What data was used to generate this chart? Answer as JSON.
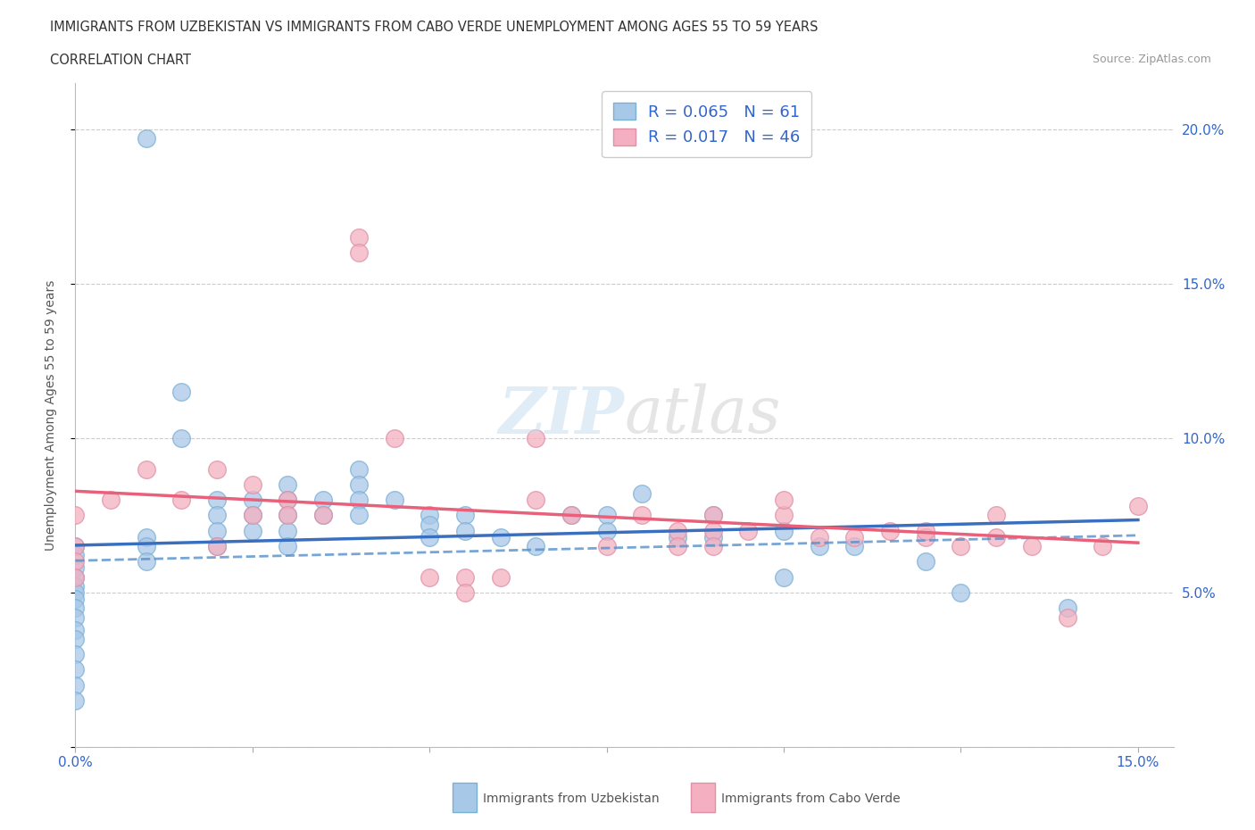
{
  "title_line1": "IMMIGRANTS FROM UZBEKISTAN VS IMMIGRANTS FROM CABO VERDE UNEMPLOYMENT AMONG AGES 55 TO 59 YEARS",
  "title_line2": "CORRELATION CHART",
  "source_text": "Source: ZipAtlas.com",
  "ylabel": "Unemployment Among Ages 55 to 59 years",
  "xlim": [
    0.0,
    0.155
  ],
  "ylim": [
    0.0,
    0.215
  ],
  "color_uzbekistan": "#a8c8e8",
  "color_cabo_verde": "#f4b0c0",
  "color_line_uzbekistan": "#3a6fbf",
  "color_line_cabo_verde": "#e8607a",
  "R_uzbekistan": 0.065,
  "N_uzbekistan": 61,
  "R_cabo_verde": 0.017,
  "N_cabo_verde": 46,
  "uzbekistan_x": [
    0.01,
    0.0,
    0.0,
    0.0,
    0.0,
    0.0,
    0.0,
    0.0,
    0.0,
    0.0,
    0.0,
    0.0,
    0.0,
    0.0,
    0.0,
    0.0,
    0.01,
    0.01,
    0.01,
    0.015,
    0.015,
    0.02,
    0.02,
    0.02,
    0.02,
    0.025,
    0.025,
    0.025,
    0.03,
    0.03,
    0.03,
    0.03,
    0.03,
    0.035,
    0.035,
    0.04,
    0.04,
    0.04,
    0.04,
    0.045,
    0.05,
    0.05,
    0.05,
    0.055,
    0.055,
    0.06,
    0.065,
    0.07,
    0.075,
    0.075,
    0.08,
    0.085,
    0.09,
    0.09,
    0.1,
    0.1,
    0.105,
    0.11,
    0.12,
    0.125,
    0.14
  ],
  "uzbekistan_y": [
    0.197,
    0.065,
    0.062,
    0.058,
    0.055,
    0.052,
    0.05,
    0.048,
    0.045,
    0.042,
    0.038,
    0.035,
    0.03,
    0.025,
    0.02,
    0.015,
    0.068,
    0.065,
    0.06,
    0.115,
    0.1,
    0.08,
    0.075,
    0.07,
    0.065,
    0.08,
    0.075,
    0.07,
    0.085,
    0.08,
    0.075,
    0.07,
    0.065,
    0.08,
    0.075,
    0.09,
    0.085,
    0.08,
    0.075,
    0.08,
    0.075,
    0.072,
    0.068,
    0.075,
    0.07,
    0.068,
    0.065,
    0.075,
    0.075,
    0.07,
    0.082,
    0.068,
    0.075,
    0.068,
    0.055,
    0.07,
    0.065,
    0.065,
    0.06,
    0.05,
    0.045
  ],
  "cabo_verde_x": [
    0.0,
    0.0,
    0.0,
    0.0,
    0.005,
    0.01,
    0.015,
    0.02,
    0.02,
    0.025,
    0.025,
    0.03,
    0.03,
    0.035,
    0.04,
    0.04,
    0.045,
    0.05,
    0.055,
    0.055,
    0.06,
    0.065,
    0.07,
    0.075,
    0.08,
    0.085,
    0.085,
    0.09,
    0.09,
    0.09,
    0.095,
    0.1,
    0.105,
    0.11,
    0.115,
    0.12,
    0.125,
    0.13,
    0.13,
    0.135,
    0.14,
    0.145,
    0.15,
    0.12,
    0.065,
    0.1
  ],
  "cabo_verde_y": [
    0.075,
    0.065,
    0.06,
    0.055,
    0.08,
    0.09,
    0.08,
    0.09,
    0.065,
    0.075,
    0.085,
    0.08,
    0.075,
    0.075,
    0.165,
    0.16,
    0.1,
    0.055,
    0.055,
    0.05,
    0.055,
    0.08,
    0.075,
    0.065,
    0.075,
    0.07,
    0.065,
    0.075,
    0.07,
    0.065,
    0.07,
    0.075,
    0.068,
    0.068,
    0.07,
    0.068,
    0.065,
    0.075,
    0.068,
    0.065,
    0.042,
    0.065,
    0.078,
    0.07,
    0.1,
    0.08
  ]
}
